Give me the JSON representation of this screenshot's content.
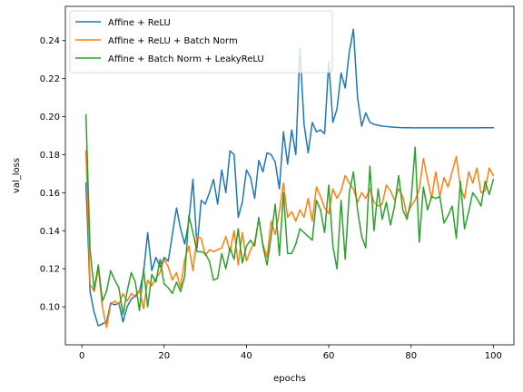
{
  "chart_data": {
    "type": "line",
    "xlabel": "epochs",
    "ylabel": "val_loss",
    "xlim": [
      -4,
      105
    ],
    "ylim": [
      0.08,
      0.258
    ],
    "xticks": [
      0,
      20,
      40,
      60,
      80,
      100
    ],
    "yticks": [
      0.1,
      0.12,
      0.14,
      0.16,
      0.18,
      0.2,
      0.22,
      0.24
    ],
    "legend_position": "top-left",
    "grid": false,
    "series": [
      {
        "name": "Affine + ReLU",
        "color": "#1f77b4",
        "values": [
          0.165,
          0.108,
          0.097,
          0.09,
          0.091,
          0.092,
          0.102,
          0.101,
          0.102,
          0.092,
          0.1,
          0.104,
          0.106,
          0.108,
          0.118,
          0.139,
          0.119,
          0.126,
          0.121,
          0.126,
          0.124,
          0.138,
          0.152,
          0.141,
          0.133,
          0.145,
          0.167,
          0.131,
          0.156,
          0.154,
          0.16,
          0.167,
          0.154,
          0.172,
          0.16,
          0.182,
          0.18,
          0.147,
          0.155,
          0.172,
          0.168,
          0.157,
          0.177,
          0.171,
          0.181,
          0.18,
          0.176,
          0.162,
          0.192,
          0.175,
          0.193,
          0.18,
          0.236,
          0.196,
          0.181,
          0.197,
          0.192,
          0.193,
          0.191,
          0.229,
          0.197,
          0.204,
          0.223,
          0.215,
          0.234,
          0.246,
          0.21,
          0.195,
          0.202,
          0.197,
          0.196,
          0.1955,
          0.195,
          0.1948,
          0.1946,
          0.1944,
          0.1943,
          0.1942,
          0.1942,
          0.1941,
          0.1941,
          0.1941,
          0.1941,
          0.1941,
          0.1941,
          0.1941,
          0.1941,
          0.1941,
          0.1941,
          0.1941,
          0.1941,
          0.1941,
          0.1941,
          0.1941,
          0.1941,
          0.1941,
          0.1942,
          0.1942,
          0.1942,
          0.1942
        ]
      },
      {
        "name": "Affine + ReLU + Batch Norm",
        "color": "#ff7f0e",
        "values": [
          0.182,
          0.112,
          0.108,
          0.12,
          0.1,
          0.089,
          0.101,
          0.103,
          0.101,
          0.107,
          0.103,
          0.107,
          0.105,
          0.109,
          0.099,
          0.114,
          0.111,
          0.115,
          0.118,
          0.125,
          0.121,
          0.114,
          0.118,
          0.11,
          0.125,
          0.132,
          0.119,
          0.137,
          0.136,
          0.127,
          0.13,
          0.129,
          0.13,
          0.131,
          0.137,
          0.129,
          0.14,
          0.122,
          0.139,
          0.124,
          0.13,
          0.134,
          0.146,
          0.133,
          0.126,
          0.145,
          0.138,
          0.15,
          0.165,
          0.147,
          0.15,
          0.145,
          0.151,
          0.147,
          0.157,
          0.145,
          0.163,
          0.158,
          0.152,
          0.149,
          0.162,
          0.157,
          0.161,
          0.169,
          0.165,
          0.162,
          0.155,
          0.16,
          0.157,
          0.162,
          0.155,
          0.153,
          0.154,
          0.164,
          0.161,
          0.156,
          0.162,
          0.158,
          0.148,
          0.153,
          0.156,
          0.162,
          0.178,
          0.167,
          0.157,
          0.171,
          0.158,
          0.168,
          0.163,
          0.171,
          0.179,
          0.163,
          0.157,
          0.171,
          0.165,
          0.173,
          0.16,
          0.161,
          0.173,
          0.169
        ]
      },
      {
        "name": "Affine + Batch Norm + LeakyReLU",
        "color": "#2ca02c",
        "values": [
          0.201,
          0.13,
          0.109,
          0.122,
          0.103,
          0.108,
          0.119,
          0.114,
          0.11,
          0.096,
          0.108,
          0.118,
          0.113,
          0.098,
          0.12,
          0.1,
          0.117,
          0.113,
          0.125,
          0.112,
          0.11,
          0.107,
          0.113,
          0.108,
          0.116,
          0.148,
          0.139,
          0.129,
          0.129,
          0.128,
          0.124,
          0.114,
          0.115,
          0.128,
          0.12,
          0.131,
          0.125,
          0.141,
          0.123,
          0.132,
          0.135,
          0.132,
          0.147,
          0.132,
          0.122,
          0.137,
          0.154,
          0.127,
          0.16,
          0.128,
          0.128,
          0.133,
          0.141,
          0.139,
          0.137,
          0.135,
          0.156,
          0.151,
          0.139,
          0.164,
          0.132,
          0.12,
          0.156,
          0.125,
          0.16,
          0.171,
          0.151,
          0.137,
          0.131,
          0.174,
          0.14,
          0.162,
          0.146,
          0.155,
          0.143,
          0.153,
          0.169,
          0.151,
          0.146,
          0.156,
          0.184,
          0.134,
          0.163,
          0.151,
          0.158,
          0.157,
          0.158,
          0.144,
          0.148,
          0.153,
          0.136,
          0.166,
          0.141,
          0.15,
          0.16,
          0.157,
          0.153,
          0.166,
          0.159,
          0.167
        ]
      }
    ]
  }
}
